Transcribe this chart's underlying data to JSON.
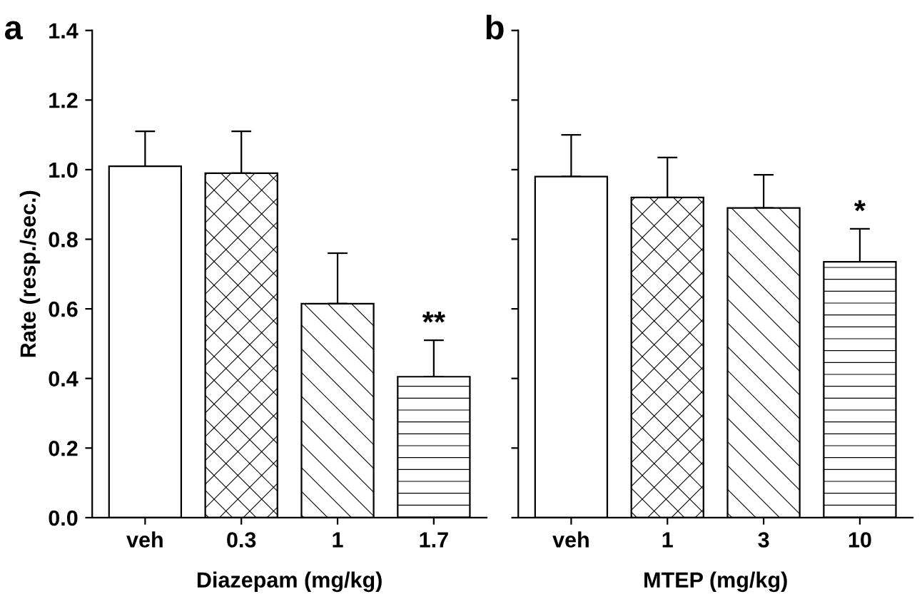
{
  "chart_data": [
    {
      "type": "bar",
      "title": "a",
      "xlabel": "Diazepam (mg/kg)",
      "ylabel": "Rate (resp./sec.)",
      "categories": [
        "veh",
        "0.3",
        "1",
        "1.7"
      ],
      "values": [
        1.01,
        0.99,
        0.615,
        0.405
      ],
      "errors": [
        [
          1.01,
          1.11
        ],
        [
          0.99,
          1.11
        ],
        [
          0.615,
          0.76
        ],
        [
          0.405,
          0.51
        ]
      ],
      "color": "#ffffff",
      "ylim": [
        0,
        1.4
      ],
      "yticks": [
        {
          "value": 0,
          "label": "0.0"
        },
        {
          "value": 0.2,
          "label": "0.2"
        },
        {
          "value": 0.4,
          "label": "0.4"
        },
        {
          "value": 0.6,
          "label": "0.6"
        },
        {
          "value": 0.8,
          "label": "0.8"
        },
        {
          "value": 1,
          "label": "1.0"
        },
        {
          "value": 1.2,
          "label": "1.2"
        },
        {
          "value": 1.4,
          "label": "1.4"
        }
      ],
      "grid": false,
      "annotations": [
        {
          "text": "**",
          "x": "1.7",
          "y": 0.51
        }
      ]
    },
    {
      "type": "bar",
      "title": "b",
      "xlabel": "MTEP (mg/kg)",
      "categories": [
        "veh",
        "1",
        "3",
        "10"
      ],
      "values": [
        0.98,
        0.92,
        0.89,
        0.735
      ],
      "errors": [
        [
          0.98,
          1.1
        ],
        [
          0.92,
          1.035
        ],
        [
          0.89,
          0.985
        ],
        [
          0.735,
          0.83
        ]
      ],
      "color": "#ffffff",
      "ylim": [
        0,
        1.4
      ],
      "yticks": [
        {
          "value": 0,
          "label": null
        },
        {
          "value": 0.2,
          "label": null
        },
        {
          "value": 0.4,
          "label": null
        },
        {
          "value": 0.6,
          "label": null
        },
        {
          "value": 0.8,
          "label": null
        },
        {
          "value": 1,
          "label": null
        },
        {
          "value": 1.2,
          "label": null
        },
        {
          "value": 1.4,
          "label": null
        }
      ],
      "grid": false,
      "tick_labels": "x",
      "annotations": [
        {
          "text": "*",
          "x": "10",
          "y": 0.83
        }
      ]
    }
  ]
}
